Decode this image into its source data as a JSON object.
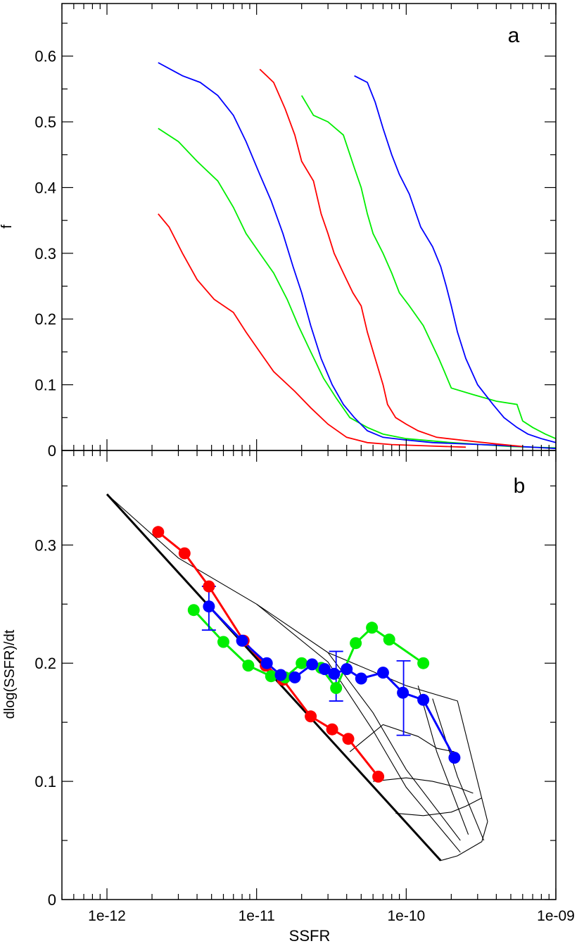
{
  "chart_data": [
    {
      "panel_label": "a",
      "type": "line",
      "xscale": "log",
      "xlim": [
        5e-13,
        1e-09
      ],
      "ylim": [
        0,
        0.68
      ],
      "ylabel": "f",
      "xlabel": "",
      "yticks": [
        0,
        0.1,
        0.2,
        0.3,
        0.4,
        0.5,
        0.6
      ],
      "ytick_labels": [
        "0",
        "0.1",
        "0.2",
        "0.3",
        "0.4",
        "0.5",
        "0.6"
      ],
      "grid": false,
      "legend": "none",
      "series": [
        {
          "color": "#ff0000",
          "points": [
            [
              2.2e-12,
              0.36
            ],
            [
              2.6e-12,
              0.34
            ],
            [
              3.2e-12,
              0.3
            ],
            [
              4e-12,
              0.26
            ],
            [
              5.2e-12,
              0.23
            ],
            [
              7e-12,
              0.21
            ],
            [
              8.5e-12,
              0.18
            ],
            [
              1.05e-11,
              0.15
            ],
            [
              1.3e-11,
              0.12
            ],
            [
              1.8e-11,
              0.09
            ],
            [
              2.3e-11,
              0.065
            ],
            [
              3e-11,
              0.04
            ],
            [
              4e-11,
              0.02
            ],
            [
              5.5e-11,
              0.012
            ],
            [
              8e-11,
              0.009
            ],
            [
              1.4e-10,
              0.007
            ],
            [
              2.5e-10,
              0.005
            ]
          ]
        },
        {
          "color": "#00ee00",
          "points": [
            [
              2.2e-12,
              0.49
            ],
            [
              3e-12,
              0.47
            ],
            [
              4e-12,
              0.44
            ],
            [
              5.5e-12,
              0.41
            ],
            [
              7e-12,
              0.37
            ],
            [
              8.5e-12,
              0.33
            ],
            [
              1.05e-11,
              0.3
            ],
            [
              1.3e-11,
              0.27
            ],
            [
              1.6e-11,
              0.23
            ],
            [
              1.9e-11,
              0.19
            ],
            [
              2.3e-11,
              0.15
            ],
            [
              2.8e-11,
              0.11
            ],
            [
              3.4e-11,
              0.08
            ],
            [
              4.2e-11,
              0.05
            ],
            [
              5.5e-11,
              0.035
            ],
            [
              7e-11,
              0.025
            ],
            [
              1e-10,
              0.018
            ],
            [
              2e-10,
              0.012
            ],
            [
              5e-10,
              0.006
            ],
            [
              1e-09,
              0.004
            ]
          ]
        },
        {
          "color": "#0000ff",
          "points": [
            [
              2.2e-12,
              0.59
            ],
            [
              3.2e-12,
              0.57
            ],
            [
              4.2e-12,
              0.56
            ],
            [
              5.5e-12,
              0.54
            ],
            [
              7e-12,
              0.51
            ],
            [
              8.5e-12,
              0.47
            ],
            [
              1.05e-11,
              0.42
            ],
            [
              1.25e-11,
              0.38
            ],
            [
              1.5e-11,
              0.33
            ],
            [
              1.75e-11,
              0.28
            ],
            [
              2e-11,
              0.24
            ],
            [
              2.3e-11,
              0.19
            ],
            [
              2.7e-11,
              0.14
            ],
            [
              3.2e-11,
              0.1
            ],
            [
              3.8e-11,
              0.07
            ],
            [
              4.5e-11,
              0.05
            ],
            [
              5.5e-11,
              0.03
            ],
            [
              7e-11,
              0.02
            ],
            [
              1e-10,
              0.016
            ],
            [
              1.5e-10,
              0.012
            ],
            [
              4e-10,
              0.008
            ],
            [
              1e-09,
              0.003
            ]
          ]
        },
        {
          "color": "#ff0000",
          "points": [
            [
              1.05e-11,
              0.58
            ],
            [
              1.3e-11,
              0.56
            ],
            [
              1.55e-11,
              0.52
            ],
            [
              1.8e-11,
              0.48
            ],
            [
              2e-11,
              0.44
            ],
            [
              2.4e-11,
              0.41
            ],
            [
              2.7e-11,
              0.36
            ],
            [
              3e-11,
              0.33
            ],
            [
              3.3e-11,
              0.3
            ],
            [
              3.8e-11,
              0.27
            ],
            [
              4.4e-11,
              0.24
            ],
            [
              5e-11,
              0.22
            ],
            [
              5.5e-11,
              0.18
            ],
            [
              6.2e-11,
              0.14
            ],
            [
              7e-11,
              0.1
            ],
            [
              7.5e-11,
              0.07
            ],
            [
              8.5e-11,
              0.05
            ],
            [
              1e-10,
              0.04
            ],
            [
              1.2e-10,
              0.03
            ],
            [
              1.6e-10,
              0.02
            ],
            [
              2.5e-10,
              0.015
            ],
            [
              4e-10,
              0.01
            ],
            [
              6e-10,
              0.006
            ]
          ]
        },
        {
          "color": "#00ee00",
          "points": [
            [
              2e-11,
              0.54
            ],
            [
              2.4e-11,
              0.51
            ],
            [
              3e-11,
              0.5
            ],
            [
              3.8e-11,
              0.48
            ],
            [
              4.5e-11,
              0.43
            ],
            [
              5e-11,
              0.4
            ],
            [
              5.5e-11,
              0.36
            ],
            [
              6e-11,
              0.33
            ],
            [
              7e-11,
              0.3
            ],
            [
              8e-11,
              0.27
            ],
            [
              9e-11,
              0.24
            ],
            [
              1.05e-10,
              0.22
            ],
            [
              1.3e-10,
              0.19
            ],
            [
              1.5e-10,
              0.16
            ],
            [
              1.65e-10,
              0.14
            ],
            [
              1.8e-10,
              0.12
            ],
            [
              2e-10,
              0.095
            ],
            [
              2.8e-10,
              0.085
            ],
            [
              4e-10,
              0.075
            ],
            [
              5.5e-10,
              0.07
            ],
            [
              6e-10,
              0.045
            ],
            [
              7e-10,
              0.035
            ],
            [
              8.5e-10,
              0.025
            ],
            [
              1e-09,
              0.018
            ]
          ]
        },
        {
          "color": "#0000ff",
          "points": [
            [
              4.5e-11,
              0.57
            ],
            [
              5.5e-11,
              0.56
            ],
            [
              6.2e-11,
              0.53
            ],
            [
              7e-11,
              0.49
            ],
            [
              8e-11,
              0.45
            ],
            [
              9e-11,
              0.42
            ],
            [
              1.05e-10,
              0.39
            ],
            [
              1.25e-10,
              0.34
            ],
            [
              1.5e-10,
              0.31
            ],
            [
              1.7e-10,
              0.28
            ],
            [
              1.85e-10,
              0.25
            ],
            [
              2e-10,
              0.22
            ],
            [
              2.2e-10,
              0.18
            ],
            [
              2.5e-10,
              0.14
            ],
            [
              3e-10,
              0.1
            ],
            [
              3.8e-10,
              0.07
            ],
            [
              4.5e-10,
              0.05
            ],
            [
              5.5e-10,
              0.035
            ],
            [
              6.5e-10,
              0.025
            ],
            [
              8e-10,
              0.018
            ],
            [
              1e-09,
              0.012
            ]
          ]
        }
      ]
    },
    {
      "panel_label": "b",
      "type": "line",
      "xscale": "log",
      "xlim": [
        5e-13,
        1e-09
      ],
      "ylim": [
        0,
        0.38
      ],
      "xlabel": "SSFR",
      "ylabel": "dlog(SSFR)/dt",
      "xticks": [
        1e-12,
        1e-11,
        1e-10,
        1e-09
      ],
      "xtick_labels": [
        "1e-12",
        "1e-11",
        "1e-10",
        "1e-09"
      ],
      "yticks": [
        0,
        0.1,
        0.2,
        0.3
      ],
      "ytick_labels": [
        "0",
        "0.1",
        "0.2",
        "0.3"
      ],
      "grid": false,
      "legend": "none",
      "series": [
        {
          "color": "#ff0000",
          "marker": "circle",
          "points": [
            [
              2.2e-12,
              0.311
            ],
            [
              3.3e-12,
              0.293
            ],
            [
              4.8e-12,
              0.265
            ],
            [
              8.2e-12,
              0.219
            ],
            [
              1.15e-11,
              0.198
            ],
            [
              1.5e-11,
              0.186
            ],
            [
              2.3e-11,
              0.155
            ],
            [
              3.2e-11,
              0.144
            ],
            [
              4.1e-11,
              0.136
            ],
            [
              6.5e-11,
              0.104
            ]
          ]
        },
        {
          "color": "#00ee00",
          "marker": "circle",
          "points": [
            [
              3.8e-12,
              0.245
            ],
            [
              6e-12,
              0.218
            ],
            [
              8.8e-12,
              0.198
            ],
            [
              1.25e-11,
              0.189
            ],
            [
              1.55e-11,
              0.188
            ],
            [
              2e-11,
              0.2
            ],
            [
              2.7e-11,
              0.196
            ],
            [
              3.4e-11,
              0.179
            ],
            [
              4.6e-11,
              0.217
            ],
            [
              5.9e-11,
              0.23
            ],
            [
              7.7e-11,
              0.22
            ],
            [
              1.3e-10,
              0.2
            ]
          ]
        },
        {
          "color": "#0000ff",
          "marker": "circle",
          "points": [
            [
              4.8e-12,
              0.248
            ],
            [
              8e-12,
              0.219
            ],
            [
              1.17e-11,
              0.2
            ],
            [
              1.45e-11,
              0.19
            ],
            [
              1.8e-11,
              0.188
            ],
            [
              2.35e-11,
              0.199
            ],
            [
              2.85e-11,
              0.195
            ],
            [
              3.3e-11,
              0.191
            ],
            [
              4e-11,
              0.195
            ],
            [
              5e-11,
              0.187
            ],
            [
              7e-11,
              0.192
            ],
            [
              9.5e-11,
              0.175
            ],
            [
              1.3e-10,
              0.169
            ],
            [
              2.1e-10,
              0.12
            ]
          ]
        }
      ],
      "error_bars": [
        {
          "x": 4.8e-12,
          "y": 0.248,
          "low": 0.228,
          "high": 0.265
        },
        {
          "x": 3.4e-11,
          "y": 0.19,
          "low": 0.168,
          "high": 0.21
        },
        {
          "x": 9.6e-11,
          "y": 0.175,
          "low": 0.139,
          "high": 0.202
        }
      ],
      "model_grid": {
        "color": "#000000",
        "bold_line": [
          [
            1e-12,
            0.343
          ],
          [
            1.7e-10,
            0.033
          ]
        ],
        "curves": [
          [
            [
              1e-12,
              0.343
            ],
            [
              3e-12,
              0.289
            ],
            [
              1e-11,
              0.25
            ],
            [
              3e-11,
              0.209
            ],
            [
              1e-10,
              0.181
            ],
            [
              2.2e-10,
              0.168
            ],
            [
              3.5e-10,
              0.066
            ]
          ],
          [
            [
              1e-11,
              0.25
            ],
            [
              3e-11,
              0.201
            ],
            [
              6e-11,
              0.143
            ],
            [
              1e-10,
              0.095
            ],
            [
              2.3e-10,
              0.04
            ]
          ],
          [
            [
              3e-11,
              0.209
            ],
            [
              6e-11,
              0.158
            ],
            [
              1e-10,
              0.11
            ],
            [
              2.3e-10,
              0.05
            ]
          ],
          [
            [
              1.2e-10,
              0.181
            ],
            [
              1.6e-10,
              0.125
            ],
            [
              2.6e-10,
              0.055
            ]
          ],
          [
            [
              1.5e-10,
              0.17
            ],
            [
              2.2e-10,
              0.104
            ],
            [
              3.3e-10,
              0.05
            ]
          ],
          [
            [
              4.2e-11,
              0.125
            ],
            [
              7e-11,
              0.148
            ],
            [
              1.2e-10,
              0.138
            ],
            [
              1.6e-10,
              0.128
            ],
            [
              2.1e-10,
              0.125
            ]
          ],
          [
            [
              6e-11,
              0.1
            ],
            [
              1e-10,
              0.103
            ],
            [
              1.5e-10,
              0.1
            ],
            [
              2.2e-10,
              0.095
            ],
            [
              2.8e-10,
              0.09
            ]
          ],
          [
            [
              8.5e-11,
              0.073
            ],
            [
              1.3e-10,
              0.071
            ],
            [
              2e-10,
              0.074
            ],
            [
              2.5e-10,
              0.079
            ],
            [
              3.2e-10,
              0.086
            ]
          ],
          [
            [
              1.7e-10,
              0.033
            ],
            [
              2.2e-10,
              0.037
            ],
            [
              3.2e-10,
              0.049
            ],
            [
              3.5e-10,
              0.066
            ]
          ]
        ]
      }
    }
  ]
}
